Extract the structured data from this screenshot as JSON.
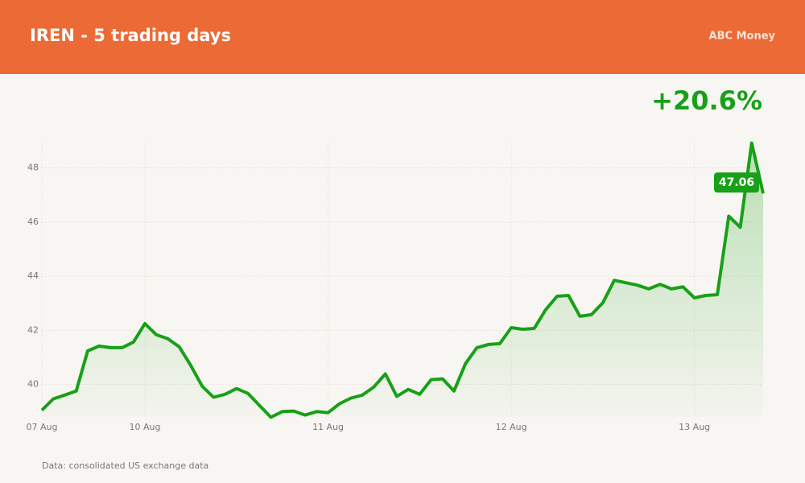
{
  "header": {
    "title": "IREN - 5 trading days",
    "brand": "ABC Money"
  },
  "change": "+20.6%",
  "source": "Data: consolidated US exchange data",
  "chart_data": {
    "type": "line",
    "categories": [
      "07 Aug",
      null,
      null,
      null,
      null,
      null,
      null,
      null,
      null,
      "10 Aug",
      null,
      null,
      null,
      null,
      null,
      null,
      null,
      null,
      null,
      null,
      null,
      null,
      null,
      null,
      null,
      "11 Aug",
      null,
      null,
      null,
      null,
      null,
      null,
      null,
      null,
      null,
      null,
      null,
      null,
      null,
      null,
      null,
      "12 Aug",
      null,
      null,
      null,
      null,
      null,
      null,
      null,
      null,
      null,
      null,
      null,
      null,
      null,
      null,
      null,
      "13 Aug",
      null,
      null,
      null,
      null,
      null,
      null
    ],
    "series": [
      {
        "name": "IREN",
        "color": "#18a018",
        "values": [
          39.05,
          39.47,
          39.61,
          39.76,
          41.24,
          41.42,
          41.36,
          41.36,
          41.57,
          42.25,
          41.84,
          41.69,
          41.39,
          40.71,
          39.94,
          39.53,
          39.64,
          39.85,
          39.67,
          39.23,
          38.79,
          39.0,
          39.02,
          38.87,
          39.0,
          38.96,
          39.29,
          39.5,
          39.61,
          39.91,
          40.39,
          39.56,
          39.82,
          39.64,
          40.18,
          40.21,
          39.76,
          40.77,
          41.36,
          41.48,
          41.51,
          42.1,
          42.04,
          42.07,
          42.76,
          43.26,
          43.29,
          42.52,
          42.58,
          43.02,
          43.85,
          43.76,
          43.67,
          43.53,
          43.7,
          43.53,
          43.61,
          43.2,
          43.29,
          43.32,
          46.22,
          45.81,
          48.92,
          47.06
        ]
      }
    ],
    "ylim": [
      38.8,
      49.0
    ],
    "yticks": [
      40,
      42,
      44,
      46,
      48
    ],
    "grid": true
  }
}
